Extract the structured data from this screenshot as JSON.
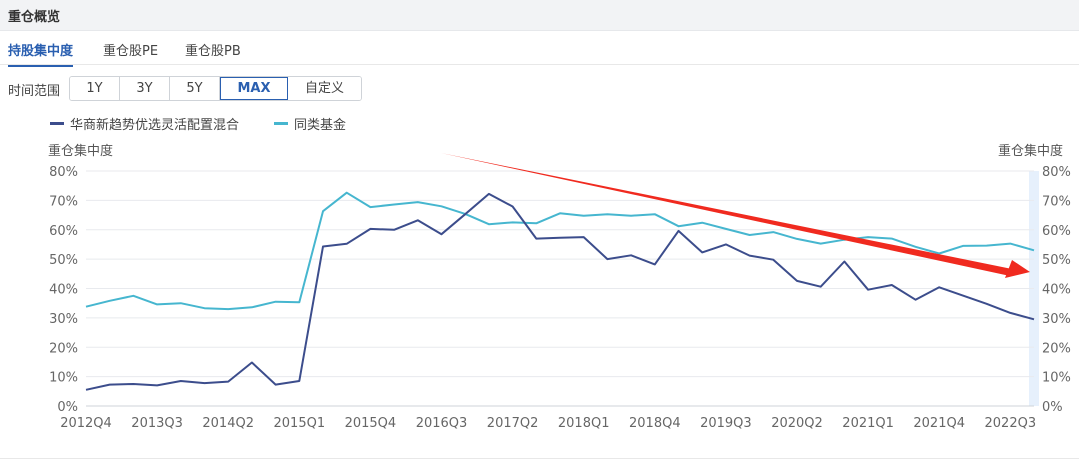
{
  "panel": {
    "title": "重仓概览"
  },
  "tabs": [
    {
      "label": "持股集中度",
      "active": true
    },
    {
      "label": "重仓股PE",
      "active": false
    },
    {
      "label": "重仓股PB",
      "active": false
    }
  ],
  "time_range": {
    "label": "时间范围",
    "options": [
      "1Y",
      "3Y",
      "5Y",
      "MAX",
      "自定义"
    ],
    "selected": "MAX"
  },
  "chart_data": {
    "type": "line",
    "left_axis_title": "重仓集中度",
    "right_axis_title": "重仓集中度",
    "ylim": [
      0,
      80
    ],
    "y_ticks": [
      "0%",
      "10%",
      "20%",
      "30%",
      "40%",
      "50%",
      "60%",
      "70%",
      "80%"
    ],
    "x_tick_labels": [
      "2012Q4",
      "2013Q3",
      "2014Q2",
      "2015Q1",
      "2015Q4",
      "2016Q3",
      "2017Q2",
      "2018Q1",
      "2018Q4",
      "2019Q3",
      "2020Q2",
      "2021Q1",
      "2021Q4",
      "2022Q3"
    ],
    "x": [
      "2012Q4",
      "2013Q1",
      "2013Q2",
      "2013Q3",
      "2013Q4",
      "2014Q1",
      "2014Q2",
      "2014Q3",
      "2014Q4",
      "2015Q1",
      "2015Q2",
      "2015Q3",
      "2015Q4",
      "2016Q1",
      "2016Q2",
      "2016Q3",
      "2016Q4",
      "2017Q1",
      "2017Q2",
      "2017Q3",
      "2017Q4",
      "2018Q1",
      "2018Q2",
      "2018Q3",
      "2018Q4",
      "2019Q1",
      "2019Q2",
      "2019Q3",
      "2019Q4",
      "2020Q1",
      "2020Q2",
      "2020Q3",
      "2020Q4",
      "2021Q1",
      "2021Q2",
      "2021Q3",
      "2021Q4",
      "2022Q1",
      "2022Q2",
      "2022Q3",
      "2022Q4"
    ],
    "series": [
      {
        "name": "华商新趋势优选灵活配置混合",
        "color": "#3c4d8c",
        "values": [
          5.5,
          7.3,
          7.5,
          7.0,
          8.5,
          7.8,
          8.3,
          14.8,
          7.3,
          8.5,
          54.3,
          55.2,
          60.3,
          60.0,
          63.2,
          58.5,
          65.3,
          72.2,
          67.9,
          57.0,
          57.3,
          57.5,
          50.0,
          51.3,
          48.2,
          59.6,
          52.3,
          55.0,
          51.2,
          49.8,
          42.6,
          40.6,
          49.2,
          39.6,
          41.2,
          36.2,
          40.4,
          37.6,
          34.8,
          31.7,
          29.5
        ]
      },
      {
        "name": "同类基金",
        "color": "#46b6cf",
        "values": [
          33.8,
          35.8,
          37.5,
          34.6,
          35.0,
          33.3,
          33.0,
          33.6,
          35.5,
          35.3,
          66.3,
          72.6,
          67.7,
          68.6,
          69.4,
          68.0,
          65.4,
          61.9,
          62.5,
          62.2,
          65.6,
          64.8,
          65.3,
          64.8,
          65.3,
          61.2,
          62.4,
          60.3,
          58.2,
          59.2,
          56.9,
          55.3,
          56.6,
          57.5,
          57.0,
          54.2,
          51.9,
          54.5,
          54.6,
          55.3,
          53.0
        ]
      }
    ],
    "grid": true,
    "legend_position": "top-left"
  },
  "colors": {
    "accent": "#2a5fb0",
    "arrow": "#f02a1f",
    "grid": "#e8eaee",
    "highlight_band": "#e6f0fc"
  }
}
